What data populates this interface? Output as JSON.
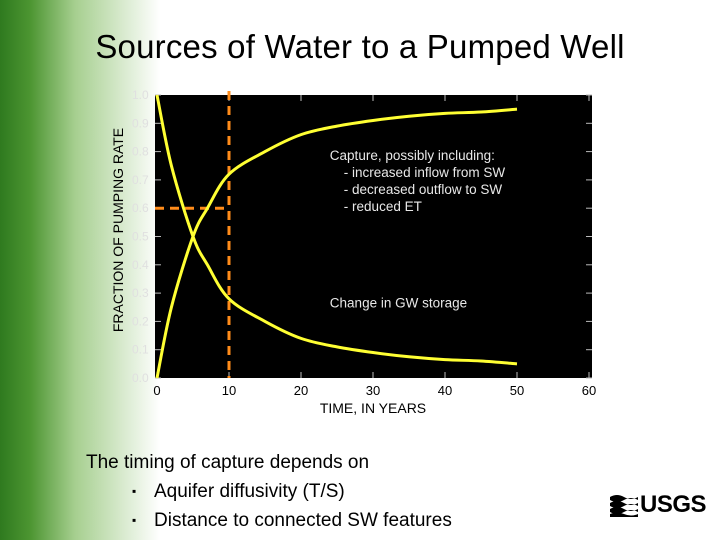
{
  "slide": {
    "title": "Sources of Water to a Pumped Well",
    "bottom_heading": "The timing of capture depends on",
    "bullets": [
      "Aquifer diffusivity (T/S)",
      "Distance to connected SW features"
    ],
    "bullet_glyph": "▪",
    "logo_text": "USGS"
  },
  "chart_data": {
    "type": "line",
    "title": "",
    "xlabel": "TIME, IN YEARS",
    "ylabel": "FRACTION OF PUMPING RATE",
    "xlim": [
      0,
      50
    ],
    "ylim": [
      0,
      1
    ],
    "x_ticks": [
      "0",
      "10",
      "20",
      "30",
      "40",
      "50",
      "60"
    ],
    "y_ticks": [
      "0.0",
      "0.1",
      "0.2",
      "0.3",
      "0.4",
      "0.5",
      "0.6",
      "0.7",
      "0.8",
      "0.9",
      "1.0"
    ],
    "grid": false,
    "plot_background": "#000000",
    "series": [
      {
        "color": "#ffff33",
        "x": [
          0,
          2,
          5,
          7,
          10,
          15,
          20,
          25,
          30,
          35,
          40,
          45,
          50
        ],
        "values": [
          0,
          0.25,
          0.5,
          0.6,
          0.72,
          0.8,
          0.86,
          0.89,
          0.91,
          0.925,
          0.935,
          0.94,
          0.95
        ]
      },
      {
        "color": "#ffff33",
        "x": [
          0,
          2,
          5,
          7,
          10,
          15,
          20,
          25,
          30,
          35,
          40,
          45,
          50
        ],
        "values": [
          1,
          0.75,
          0.5,
          0.4,
          0.28,
          0.2,
          0.14,
          0.11,
          0.09,
          0.075,
          0.065,
          0.06,
          0.05
        ]
      }
    ],
    "reference_lines": {
      "color": "#ff8c1a",
      "vertical_x": 10,
      "horizontal_y": 0.6,
      "horizontal_x_end": 10
    },
    "annotations": [
      {
        "lines": [
          "Capture, possibly including:",
          "- increased inflow from SW",
          "- decreased outflow to SW",
          "- reduced ET"
        ],
        "x": 24,
        "y": 0.77
      },
      {
        "lines": [
          "Change in GW storage"
        ],
        "x": 24,
        "y": 0.25
      }
    ]
  }
}
